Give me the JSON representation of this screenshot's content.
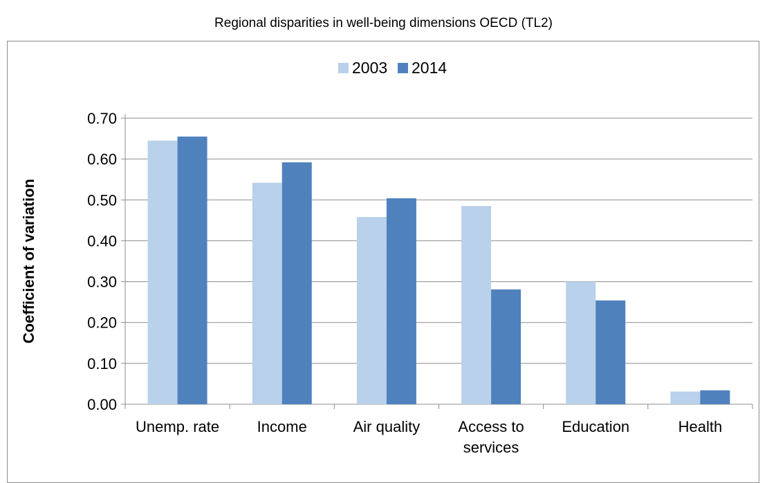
{
  "title": "Regional disparities in well-being dimensions OECD (TL2)",
  "chart_data": {
    "type": "bar",
    "title": "Regional disparities in well-being dimensions OECD (TL2)",
    "xlabel": "",
    "ylabel": "Coefficient of variation",
    "ylim": [
      0,
      0.7
    ],
    "yticks": [
      "0.00",
      "0.10",
      "0.20",
      "0.30",
      "0.40",
      "0.50",
      "0.60",
      "0.70"
    ],
    "grid": true,
    "legend_position": "top",
    "categories": [
      [
        "Unemp. rate"
      ],
      [
        "Income"
      ],
      [
        "Air quality"
      ],
      [
        "Access to",
        "services"
      ],
      [
        "Education"
      ],
      [
        "Health"
      ]
    ],
    "series": [
      {
        "name": "2003",
        "color": "#b9d1ea",
        "values": [
          0.645,
          0.542,
          0.458,
          0.485,
          0.3,
          0.031
        ]
      },
      {
        "name": "2014",
        "color": "#4f81bd",
        "values": [
          0.655,
          0.592,
          0.504,
          0.281,
          0.254,
          0.034
        ]
      }
    ]
  }
}
